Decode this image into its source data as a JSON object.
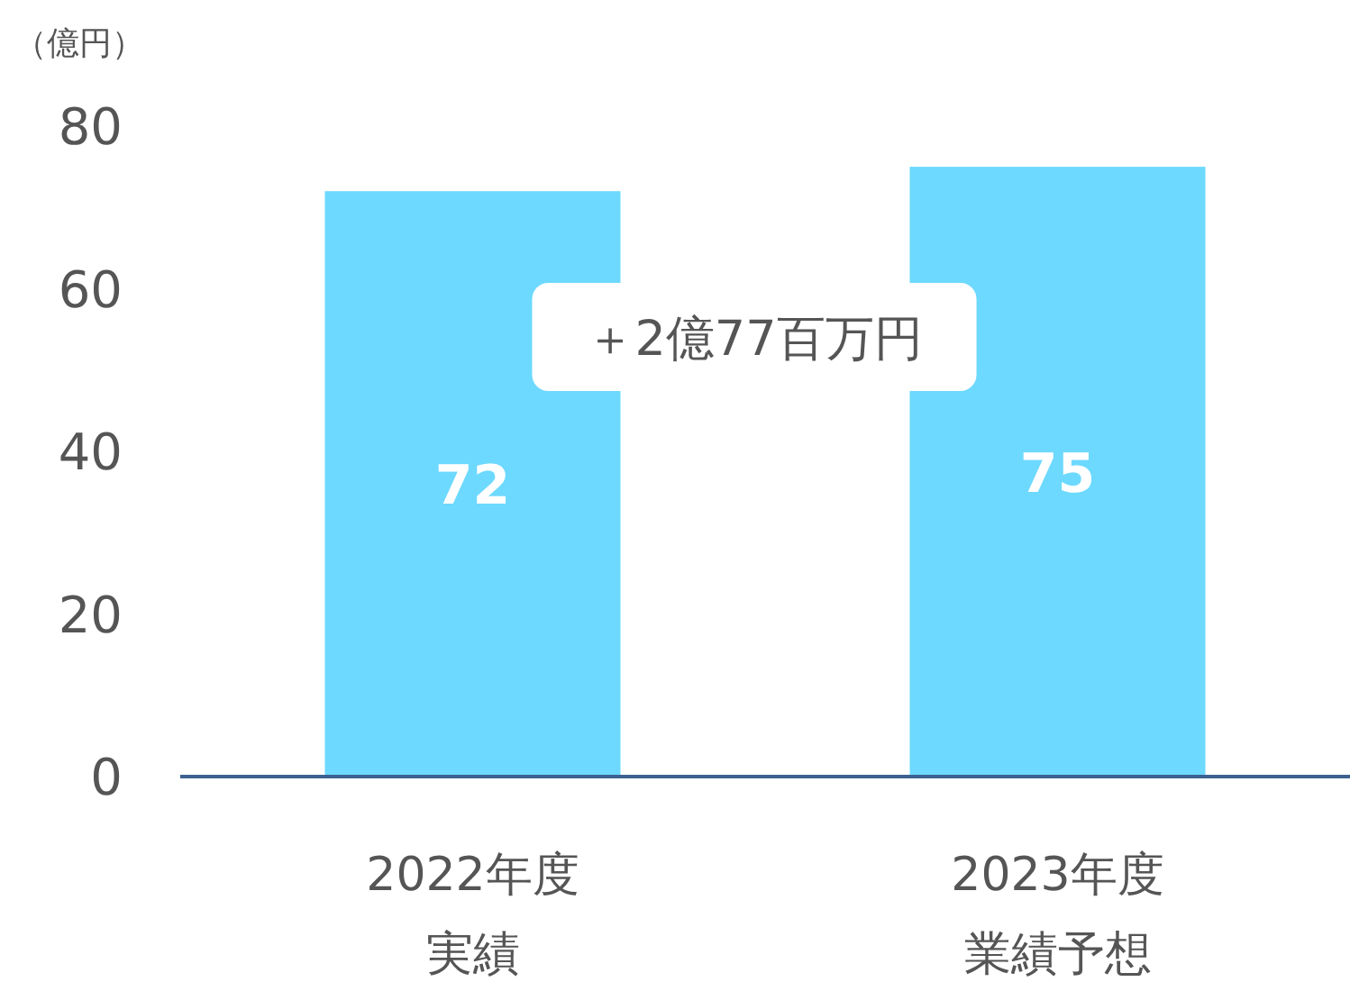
{
  "chart_data": {
    "type": "bar",
    "ylabel": "（億円）",
    "categories": [
      "2022年度実績",
      "2023年度業績予想"
    ],
    "values": [
      72,
      75
    ],
    "color": "#6dd9fe",
    "ylim": [
      0,
      80
    ],
    "yticks": [
      0,
      20,
      40,
      60,
      80
    ],
    "grid": false,
    "data_labels": true,
    "annotations": [
      "＋2億77百万円"
    ]
  }
}
